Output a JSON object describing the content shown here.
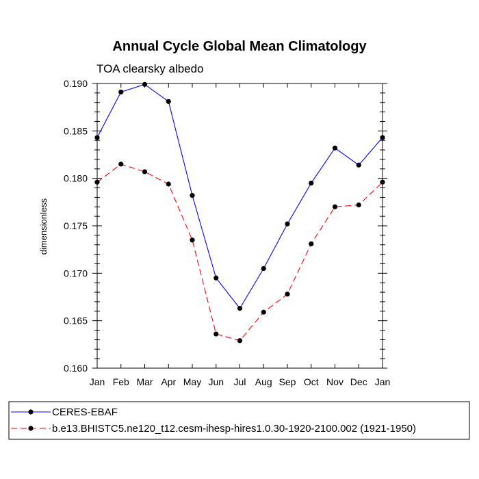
{
  "chart_data": {
    "type": "line",
    "title": "Annual Cycle Global Mean Climatology",
    "subtitle": "TOA clearsky albedo",
    "xlabel": "",
    "ylabel": "dimensionless",
    "categories": [
      "Jan",
      "Feb",
      "Mar",
      "Apr",
      "May",
      "Jun",
      "Jul",
      "Aug",
      "Sep",
      "Oct",
      "Nov",
      "Dec",
      "Jan"
    ],
    "ylim": [
      0.16,
      0.19
    ],
    "yticks": [
      "0.160",
      "0.165",
      "0.170",
      "0.175",
      "0.180",
      "0.185",
      "0.190"
    ],
    "grid": false,
    "legend_position": "bottom",
    "series": [
      {
        "name": "CERES-EBAF",
        "color": "#0000ff",
        "line_style": "solid",
        "marker": "filled-circle",
        "values": [
          0.1843,
          0.1891,
          0.1899,
          0.1881,
          0.1782,
          0.1695,
          0.1663,
          0.1705,
          0.1752,
          0.1795,
          0.1832,
          0.1814,
          0.1843
        ]
      },
      {
        "name": "b.e13.BHISTC5.ne120_t12.cesm-ihesp-hires1.0.30-1920-2100.002 (1921-1950)",
        "color": "#ff0000",
        "line_style": "dashed",
        "marker": "filled-circle",
        "values": [
          0.1796,
          0.1815,
          0.1807,
          0.1794,
          0.1735,
          0.1636,
          0.1629,
          0.1659,
          0.1678,
          0.1731,
          0.177,
          0.1772,
          0.1796
        ]
      }
    ]
  }
}
